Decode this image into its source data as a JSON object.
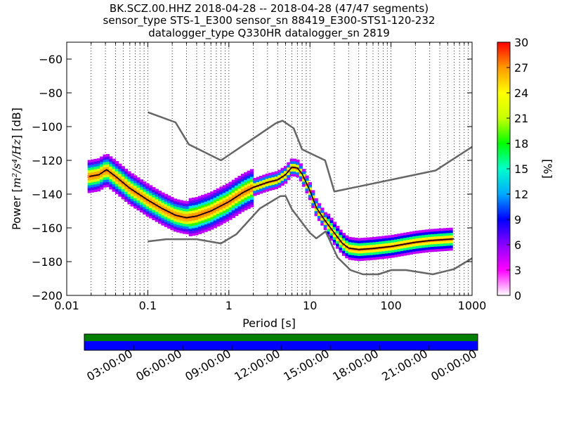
{
  "title_lines": [
    "BK.SCZ.00.HHZ   2018-04-28 -- 2018-04-28  (47/47 segments)",
    "sensor_type STS-1_E300 sensor_sn 88419_E300-STS1-120-232",
    "datalogger_type Q330HR datalogger_sn 2819"
  ],
  "chart_data": [
    {
      "type": "heatmap",
      "title": "BK.SCZ.00.HHZ   2018-04-28 -- 2018-04-28  (47/47 segments)",
      "xlabel": "Period [s]",
      "ylabel_prefix": "Power [",
      "ylabel_unit": "m²/s⁴/Hz",
      "ylabel_suffix": "] [dB]",
      "x_scale": "log",
      "xlim": [
        0.01,
        1000
      ],
      "ylim": [
        -200,
        -50
      ],
      "x_ticks": [
        {
          "value": 0.01,
          "label": "0.01"
        },
        {
          "value": 0.1,
          "label": "0.1"
        },
        {
          "value": 1,
          "label": "1"
        },
        {
          "value": 10,
          "label": "10"
        },
        {
          "value": 100,
          "label": "100"
        },
        {
          "value": 1000,
          "label": "1000"
        }
      ],
      "y_ticks": [
        {
          "value": -200,
          "label": "−200"
        },
        {
          "value": -180,
          "label": "−180"
        },
        {
          "value": -160,
          "label": "−160"
        },
        {
          "value": -140,
          "label": "−140"
        },
        {
          "value": -120,
          "label": "−120"
        },
        {
          "value": -100,
          "label": "−100"
        },
        {
          "value": -80,
          "label": "−80"
        },
        {
          "value": -60,
          "label": "−60"
        }
      ],
      "grid": "dotted vertical at log minor ticks",
      "colorbar": {
        "label": "[%]",
        "range": [
          0,
          30
        ],
        "ticks": [
          {
            "value": 0,
            "label": "0"
          },
          {
            "value": 3,
            "label": "3"
          },
          {
            "value": 6,
            "label": "6"
          },
          {
            "value": 9,
            "label": "9"
          },
          {
            "value": 12,
            "label": "12"
          },
          {
            "value": 15,
            "label": "15"
          },
          {
            "value": 18,
            "label": "18"
          },
          {
            "value": 21,
            "label": "21"
          },
          {
            "value": 24,
            "label": "24"
          },
          {
            "value": 27,
            "label": "27"
          },
          {
            "value": 30,
            "label": "30"
          }
        ],
        "colors": [
          "#ffffff",
          "#ff00ff",
          "#8a00ff",
          "#0000ff",
          "#00aaff",
          "#00ffcc",
          "#00ff00",
          "#c8ff00",
          "#ffff00",
          "#ff9900",
          "#ff0000"
        ]
      },
      "series": [
        {
          "name": "",
          "role": "new high noise model",
          "color": "#666666",
          "points": [
            [
              0.1,
              -91.5
            ],
            [
              0.22,
              -97.5
            ],
            [
              0.32,
              -110.5
            ],
            [
              0.8,
              -120.0
            ],
            [
              3.8,
              -98.0
            ],
            [
              4.6,
              -96.5
            ],
            [
              6.3,
              -101.0
            ],
            [
              8.0,
              -113.5
            ],
            [
              15.4,
              -120.0
            ],
            [
              20.0,
              -138.5
            ],
            [
              354.8,
              -126.0
            ],
            [
              1000,
              -112.0
            ]
          ]
        },
        {
          "name": "",
          "role": "new low noise model",
          "color": "#666666",
          "points": [
            [
              0.1,
              -168.0
            ],
            [
              0.17,
              -166.7
            ],
            [
              0.4,
              -166.7
            ],
            [
              0.8,
              -169.2
            ],
            [
              1.24,
              -163.7
            ],
            [
              2.4,
              -148.6
            ],
            [
              4.3,
              -141.2
            ],
            [
              5.0,
              -141.1
            ],
            [
              6.0,
              -149.0
            ],
            [
              10.0,
              -163.0
            ],
            [
              12.0,
              -166.2
            ],
            [
              15.6,
              -162.1
            ],
            [
              21.9,
              -177.5
            ],
            [
              31.6,
              -185.0
            ],
            [
              45.0,
              -187.5
            ],
            [
              70.0,
              -187.5
            ],
            [
              101.0,
              -185.0
            ],
            [
              154.0,
              -185.0
            ],
            [
              328.0,
              -187.5
            ],
            [
              600.0,
              -184.4
            ],
            [
              1000,
              -178.0
            ]
          ]
        },
        {
          "name": "",
          "role": "mean PSD",
          "color": "#000000",
          "points": [
            [
              0.019,
              -129.5
            ],
            [
              0.025,
              -128.5
            ],
            [
              0.031,
              -125.5
            ],
            [
              0.04,
              -129.5
            ],
            [
              0.06,
              -136.5
            ],
            [
              0.1,
              -143.5
            ],
            [
              0.15,
              -148.5
            ],
            [
              0.22,
              -152.5
            ],
            [
              0.3,
              -154.0
            ],
            [
              0.4,
              -153.0
            ],
            [
              0.6,
              -150.0
            ],
            [
              1.0,
              -144.5
            ],
            [
              1.5,
              -139.0
            ],
            [
              2.0,
              -136.0
            ],
            [
              3.0,
              -133.0
            ],
            [
              4.0,
              -131.5
            ],
            [
              5.0,
              -128.5
            ],
            [
              6.0,
              -124.0
            ],
            [
              7.0,
              -124.5
            ],
            [
              8.0,
              -128.0
            ],
            [
              10.0,
              -138.0
            ],
            [
              12.0,
              -148.0
            ],
            [
              15.0,
              -155.0
            ],
            [
              20.0,
              -163.0
            ],
            [
              25.0,
              -169.0
            ],
            [
              30.0,
              -172.0
            ],
            [
              40.0,
              -172.8
            ],
            [
              60.0,
              -172.2
            ],
            [
              100.0,
              -171.0
            ],
            [
              200.0,
              -168.5
            ],
            [
              300.0,
              -167.5
            ],
            [
              600.0,
              -166.5
            ]
          ]
        }
      ]
    },
    {
      "type": "bar",
      "title": "",
      "xlim": [
        "00:00:00",
        "24:00:00"
      ],
      "x_ticks": [
        {
          "value": 3,
          "label": "03:00:00"
        },
        {
          "value": 6,
          "label": "06:00:00"
        },
        {
          "value": 9,
          "label": "09:00:00"
        },
        {
          "value": 12,
          "label": "12:00:00"
        },
        {
          "value": 15,
          "label": "15:00:00"
        },
        {
          "value": 18,
          "label": "18:00:00"
        },
        {
          "value": 21,
          "label": "21:00:00"
        },
        {
          "value": 24,
          "label": "00:00:00"
        }
      ],
      "series": [
        {
          "name": "",
          "role": "data coverage",
          "color": "#007f00",
          "intervals": [
            [
              0,
              24
            ]
          ]
        },
        {
          "name": "",
          "role": "PSD segment coverage",
          "color": "#0000ff",
          "intervals": [
            [
              0,
              24
            ]
          ]
        }
      ]
    }
  ]
}
